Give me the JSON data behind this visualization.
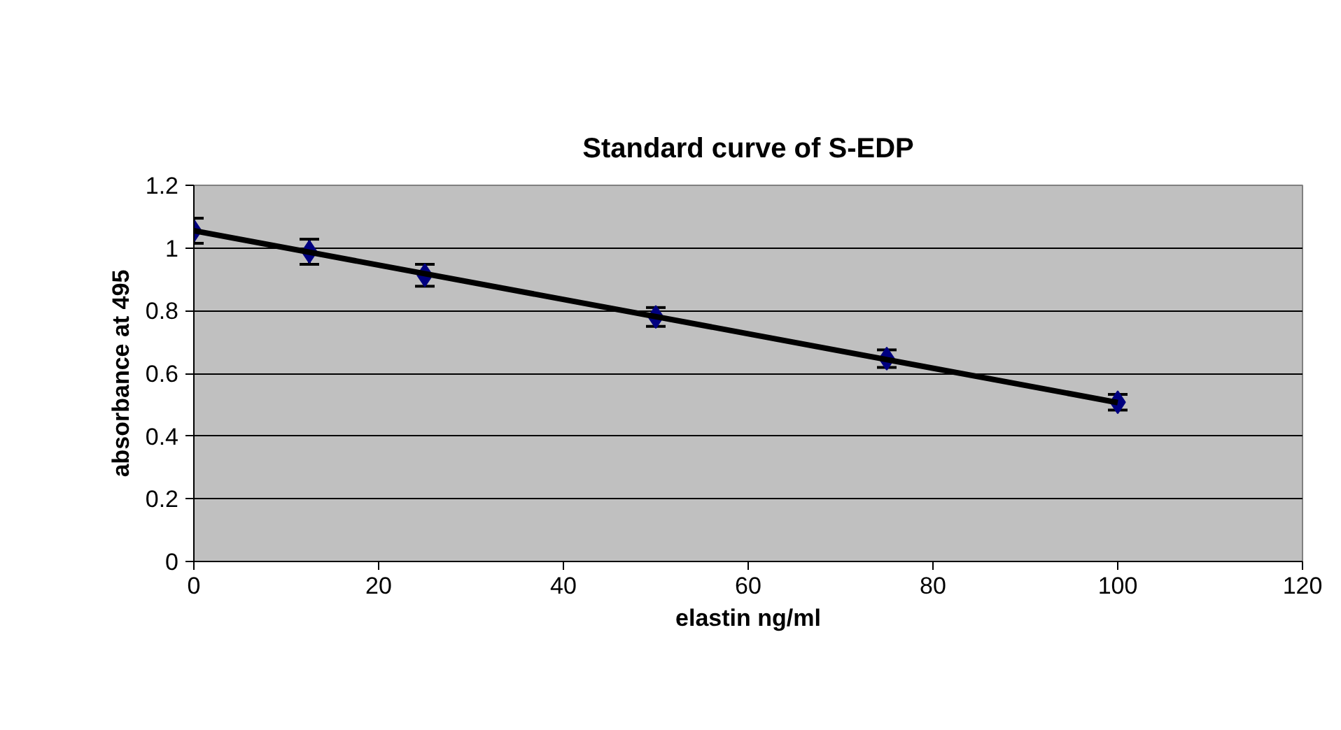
{
  "chart_data": {
    "type": "scatter",
    "title": "Standard curve of S-EDP",
    "xlabel": "elastin ng/ml",
    "ylabel": "absorbance at 495",
    "x": [
      0,
      12.5,
      25,
      50,
      75,
      100
    ],
    "series": [
      {
        "color": "#000080",
        "marker": "diamond",
        "values": [
          1.055,
          0.988,
          0.913,
          0.78,
          0.647,
          0.508
        ],
        "errors": [
          0.04,
          0.04,
          0.035,
          0.03,
          0.028,
          0.025
        ]
      },
      {
        "type": "line",
        "color": "#000000",
        "x": [
          0,
          100
        ],
        "values": [
          1.055,
          0.507
        ]
      }
    ],
    "xlim": [
      0,
      120
    ],
    "xticks": [
      0,
      20,
      40,
      60,
      80,
      100,
      120
    ],
    "ylim": [
      0,
      1.2
    ],
    "yticks": [
      0,
      0.2,
      0.4,
      0.6,
      0.8,
      1,
      1.2
    ],
    "grid": "y"
  }
}
